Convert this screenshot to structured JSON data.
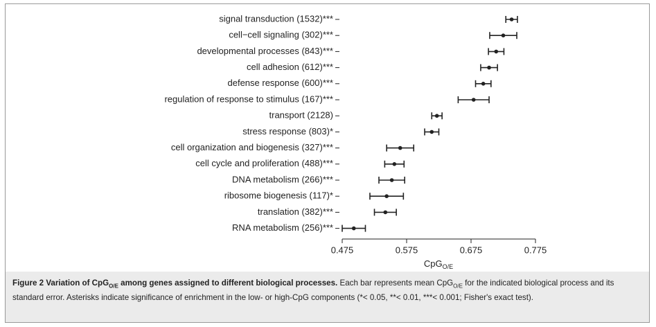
{
  "chart_data": {
    "type": "errorbar",
    "categories": [
      "signal transduction (1532)***",
      "cell−cell signaling (302)***",
      "developmental processes (843)***",
      "cell adhesion (612)***",
      "defense response (600)***",
      "regulation of response to stimulus (167)***",
      "transport (2128)",
      "stress response (803)*",
      "cell organization and biogenesis (327)***",
      "cell cycle and proliferation (488)***",
      "DNA metabolism (266)***",
      "ribosome biogenesis (117)*",
      "translation (382)***",
      "RNA metabolism (256)***"
    ],
    "values": [
      0.738,
      0.725,
      0.714,
      0.703,
      0.694,
      0.679,
      0.622,
      0.614,
      0.565,
      0.556,
      0.552,
      0.544,
      0.542,
      0.493
    ],
    "errors": [
      0.009,
      0.021,
      0.012,
      0.013,
      0.012,
      0.024,
      0.008,
      0.011,
      0.021,
      0.015,
      0.02,
      0.026,
      0.017,
      0.018
    ],
    "color": "#222222",
    "xlim": [
      0.475,
      0.775
    ],
    "xticks": [
      0.475,
      0.575,
      0.675,
      0.775
    ],
    "xlabel": "CpG",
    "xlabel_sub": "O/E"
  },
  "caption": [
    {
      "text": "Figure 2 Variation of CpG",
      "bold": true
    },
    {
      "text": "O/E",
      "bold": true,
      "sub": true
    },
    {
      "text": " among genes assigned to different biological processes.",
      "bold": true
    },
    {
      "text": " Each bar represents mean CpG"
    },
    {
      "text": "O/E",
      "sub": true
    },
    {
      "text": " for the indicated biological process and its standard error. Asterisks indicate significance of enrichment in the low- or high-CpG components (*< 0.05, **< 0.01, ***< 0.001; Fisher's exact test)."
    }
  ]
}
